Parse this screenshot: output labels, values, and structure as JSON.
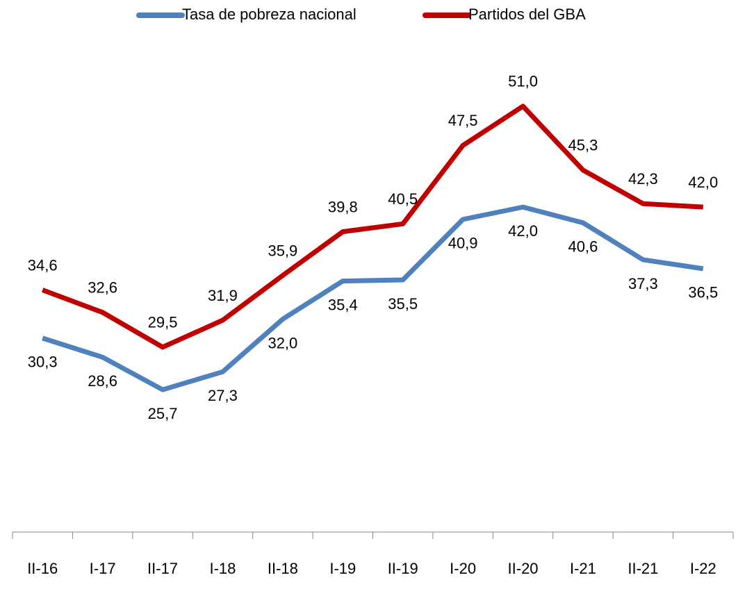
{
  "chart_data": {
    "type": "line",
    "categories": [
      "II-16",
      "I-17",
      "II-17",
      "I-18",
      "II-18",
      "I-19",
      "II-19",
      "I-20",
      "II-20",
      "I-21",
      "II-21",
      "I-22"
    ],
    "series": [
      {
        "name": "Tasa de pobreza nacional",
        "color": "#4f81bd",
        "values": [
          30.3,
          28.6,
          25.7,
          27.3,
          32.0,
          35.4,
          35.5,
          40.9,
          42.0,
          40.6,
          37.3,
          36.5
        ],
        "value_labels": [
          "30,3",
          "28,6",
          "25,7",
          "27,3",
          "32,0",
          "35,4",
          "35,5",
          "40,9",
          "42,0",
          "40,6",
          "37,3",
          "36,5"
        ]
      },
      {
        "name": "Partidos del GBA",
        "color": "#c00000",
        "values": [
          34.6,
          32.6,
          29.5,
          31.9,
          35.9,
          39.8,
          40.5,
          47.5,
          51.0,
          45.3,
          42.3,
          42.0
        ],
        "value_labels": [
          "34,6",
          "32,6",
          "29,5",
          "31,9",
          "35,9",
          "39,8",
          "40,5",
          "47,5",
          "51,0",
          "45,3",
          "42,3",
          "42,0"
        ]
      }
    ],
    "ylim": [
      13,
      58
    ],
    "legend": "top"
  }
}
